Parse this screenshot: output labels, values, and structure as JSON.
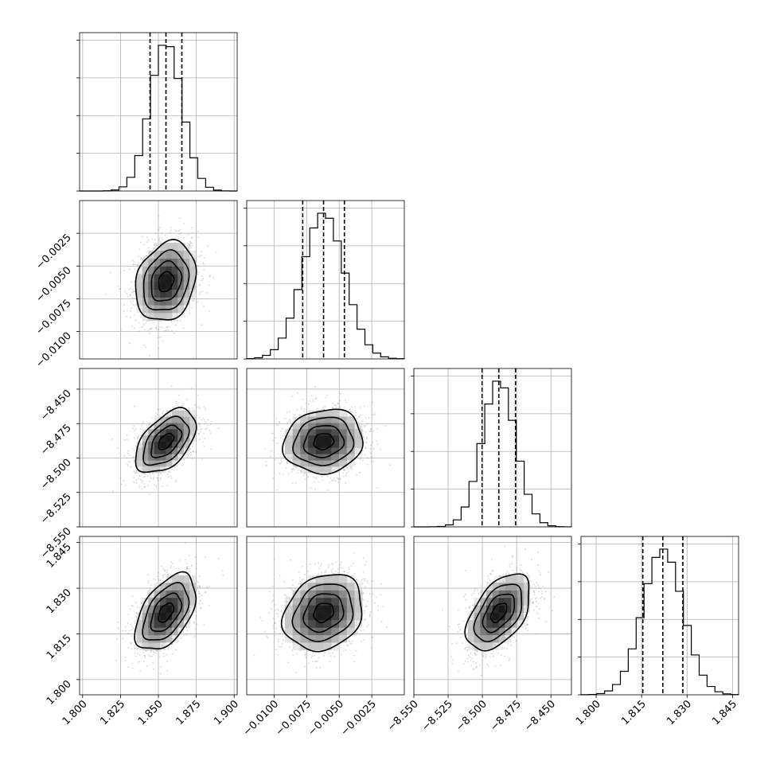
{
  "chart_data": {
    "type": "corner",
    "n_params": 4,
    "grid": true,
    "parameters": [
      {
        "mean": 1.855,
        "sigma": 0.0105,
        "range": [
          1.798,
          1.902
        ],
        "quantiles": [
          1.8445,
          1.855,
          1.8655
        ],
        "ticks": [
          1.8,
          1.825,
          1.85,
          1.875,
          1.9
        ],
        "tick_labels": [
          "1.800",
          "1.825",
          "1.850",
          "1.875",
          "1.900"
        ]
      },
      {
        "mean": -0.0062,
        "sigma": 0.0016,
        "range": [
          -0.0121,
          0.0
        ],
        "quantiles": [
          -0.0078,
          -0.0062,
          -0.0046
        ],
        "ticks": [
          -0.01,
          -0.0075,
          -0.005,
          -0.0025
        ],
        "tick_labels": [
          "−0.0100",
          "−0.0075",
          "−0.0050",
          "−0.0025"
        ]
      },
      {
        "mean": -8.488,
        "sigma": 0.0122,
        "range": [
          -8.55,
          -8.435
        ],
        "quantiles": [
          -8.5002,
          -8.488,
          -8.4758
        ],
        "ticks": [
          -8.55,
          -8.525,
          -8.5,
          -8.475,
          -8.45
        ],
        "tick_labels": [
          "−8.550",
          "−8.525",
          "−8.500",
          "−8.475",
          "−8.450"
        ]
      },
      {
        "mean": 1.822,
        "sigma": 0.0066,
        "range": [
          1.795,
          1.847
        ],
        "quantiles": [
          1.8154,
          1.822,
          1.8286
        ],
        "ticks": [
          1.8,
          1.815,
          1.83,
          1.845
        ],
        "tick_labels": [
          "1.800",
          "1.815",
          "1.830",
          "1.845"
        ]
      }
    ],
    "correlations": {
      "1-0": 0.2,
      "2-0": 0.5,
      "2-1": 0.1,
      "3-0": 0.5,
      "3-1": 0.2,
      "3-2": 0.5
    },
    "contour_levels_sigma": [
      0.5,
      1.0,
      1.5,
      2.0
    ],
    "hist_bins": 20
  }
}
